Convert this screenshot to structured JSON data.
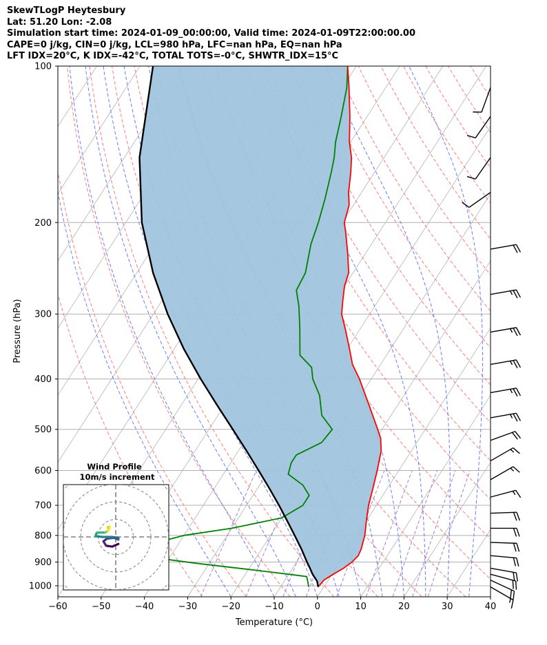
{
  "header": {
    "line1": "SkewTLogP Heytesbury",
    "line2": "Lat: 51.20   Lon: -2.08",
    "line3": "Simulation start time: 2024-01-09_00:00:00, Valid time: 2024-01-09T22:00:00.00",
    "line4": "CAPE=0 j/kg, CIN=0 j/kg, LCL=980 hPa, LFC=nan hPa, EQ=nan hPa",
    "line5": "LFT IDX=20°C, K IDX=-42°C, TOTAL TOTS=-0°C, SHWTR_IDX=15°C"
  },
  "chart_data": {
    "type": "line",
    "subtype": "skew-T log-P",
    "xlabel": "Temperature (°C)",
    "ylabel": "Pressure (hPa)",
    "xlim": [
      -60,
      40
    ],
    "ylim": [
      1050,
      100
    ],
    "yscale": "log",
    "xticks": [
      -60,
      -50,
      -40,
      -30,
      -20,
      -10,
      0,
      10,
      20,
      30,
      40
    ],
    "xtick_labels": [
      "−60",
      "−50",
      "−40",
      "−30",
      "−20",
      "−10",
      "0",
      "10",
      "20",
      "30",
      "40"
    ],
    "yticks": [
      1000,
      900,
      800,
      700,
      600,
      500,
      400,
      300,
      200,
      100
    ],
    "grid": true,
    "colors": {
      "temperature": "#ff0000",
      "dewpoint": "#008000",
      "parcel": "#000000",
      "shading": "#a0c4de",
      "dry_adiabat": "#ff6666",
      "moist_adiabat": "#4d66ff",
      "mixing_ratio": "#9966cc",
      "isotherm": "#b3b3b3"
    },
    "series": [
      {
        "role": "temperature",
        "points": [
          [
            1005,
            -1.3
          ],
          [
            975,
            -1.0
          ],
          [
            950,
            0.3
          ],
          [
            925,
            1.8
          ],
          [
            900,
            2.8
          ],
          [
            875,
            3.3
          ],
          [
            850,
            3.0
          ],
          [
            800,
            1.8
          ],
          [
            750,
            0.0
          ],
          [
            700,
            -1.8
          ],
          [
            650,
            -3.3
          ],
          [
            600,
            -5.0
          ],
          [
            550,
            -7.0
          ],
          [
            520,
            -9.0
          ],
          [
            500,
            -11.0
          ],
          [
            450,
            -16.5
          ],
          [
            400,
            -22.7
          ],
          [
            375,
            -26.5
          ],
          [
            350,
            -29.5
          ],
          [
            320,
            -33.5
          ],
          [
            300,
            -36.5
          ],
          [
            280,
            -38.5
          ],
          [
            265,
            -40.0
          ],
          [
            250,
            -41.0
          ],
          [
            230,
            -44.0
          ],
          [
            210,
            -47.5
          ],
          [
            200,
            -49.5
          ],
          [
            185,
            -51.0
          ],
          [
            175,
            -53.0
          ],
          [
            160,
            -55.5
          ],
          [
            150,
            -57.5
          ],
          [
            140,
            -60.3
          ],
          [
            125,
            -64.0
          ],
          [
            110,
            -68.5
          ],
          [
            100,
            -72.0
          ]
        ]
      },
      {
        "role": "dewpoint",
        "points": [
          [
            1005,
            -3.5
          ],
          [
            975,
            -4.8
          ],
          [
            960,
            -5.5
          ],
          [
            950,
            -10.0
          ],
          [
            930,
            -20.0
          ],
          [
            905,
            -33.0
          ],
          [
            880,
            -45.0
          ],
          [
            870,
            -47.0
          ],
          [
            850,
            -47.0
          ],
          [
            830,
            -46.0
          ],
          [
            800,
            -40.0
          ],
          [
            775,
            -30.0
          ],
          [
            740,
            -20.0
          ],
          [
            700,
            -17.0
          ],
          [
            670,
            -17.0
          ],
          [
            640,
            -20.0
          ],
          [
            610,
            -25.0
          ],
          [
            580,
            -26.0
          ],
          [
            560,
            -26.0
          ],
          [
            530,
            -22.0
          ],
          [
            500,
            -21.5
          ],
          [
            470,
            -26.0
          ],
          [
            430,
            -29.5
          ],
          [
            400,
            -33.5
          ],
          [
            380,
            -35.5
          ],
          [
            360,
            -40.0
          ],
          [
            320,
            -44.0
          ],
          [
            290,
            -47.5
          ],
          [
            270,
            -50.5
          ],
          [
            250,
            -51.0
          ],
          [
            220,
            -54.0
          ],
          [
            200,
            -55.5
          ],
          [
            180,
            -57.5
          ],
          [
            160,
            -60.0
          ],
          [
            150,
            -61.5
          ],
          [
            140,
            -63.5
          ],
          [
            125,
            -66.0
          ],
          [
            110,
            -69.0
          ],
          [
            100,
            -72.0
          ]
        ]
      },
      {
        "role": "parcel",
        "points": [
          [
            1005,
            -1.3
          ],
          [
            980,
            -2.4
          ],
          [
            950,
            -4.5
          ],
          [
            925,
            -6.0
          ],
          [
            900,
            -7.6
          ],
          [
            850,
            -10.8
          ],
          [
            800,
            -14.4
          ],
          [
            750,
            -18.3
          ],
          [
            700,
            -22.5
          ],
          [
            650,
            -27.2
          ],
          [
            600,
            -32.4
          ],
          [
            550,
            -38.1
          ],
          [
            500,
            -44.5
          ],
          [
            450,
            -51.6
          ],
          [
            400,
            -59.4
          ],
          [
            350,
            -67.8
          ],
          [
            300,
            -76.7
          ],
          [
            250,
            -86.2
          ],
          [
            200,
            -96.3
          ],
          [
            150,
            -106.5
          ],
          [
            100,
            -117.0
          ]
        ]
      }
    ],
    "wind_barbs": {
      "units": "knots",
      "levels": [
        {
          "pressure": 1005,
          "speed": 17,
          "direction": 120
        },
        {
          "pressure": 975,
          "speed": 20,
          "direction": 115
        },
        {
          "pressure": 950,
          "speed": 20,
          "direction": 105
        },
        {
          "pressure": 925,
          "speed": 20,
          "direction": 100
        },
        {
          "pressure": 875,
          "speed": 20,
          "direction": 95
        },
        {
          "pressure": 825,
          "speed": 20,
          "direction": 92
        },
        {
          "pressure": 775,
          "speed": 20,
          "direction": 90
        },
        {
          "pressure": 725,
          "speed": 20,
          "direction": 88
        },
        {
          "pressure": 675,
          "speed": 15,
          "direction": 75
        },
        {
          "pressure": 625,
          "speed": 15,
          "direction": 60
        },
        {
          "pressure": 575,
          "speed": 15,
          "direction": 60
        },
        {
          "pressure": 525,
          "speed": 20,
          "direction": 70
        },
        {
          "pressure": 475,
          "speed": 25,
          "direction": 80
        },
        {
          "pressure": 425,
          "speed": 25,
          "direction": 80
        },
        {
          "pressure": 375,
          "speed": 25,
          "direction": 80
        },
        {
          "pressure": 325,
          "speed": 25,
          "direction": 80
        },
        {
          "pressure": 275,
          "speed": 25,
          "direction": 80
        },
        {
          "pressure": 225,
          "speed": 20,
          "direction": 80
        },
        {
          "pressure": 175,
          "speed": 10,
          "direction": 235
        },
        {
          "pressure": 150,
          "speed": 10,
          "direction": 215
        },
        {
          "pressure": 125,
          "speed": 10,
          "direction": 215
        },
        {
          "pressure": 110,
          "speed": 10,
          "direction": 200
        }
      ]
    },
    "hodograph": {
      "title": "Wind Profile",
      "subtitle": "10m/s increment",
      "ring_increment_ms": 10,
      "rings": 4,
      "colormap": "viridis",
      "points": [
        [
          1.5,
          -4.0
        ],
        [
          -2.0,
          -5.5
        ],
        [
          -5.5,
          -5.0
        ],
        [
          -7.0,
          -2.5
        ],
        [
          -5.0,
          -1.0
        ],
        [
          -1.0,
          -0.5
        ],
        [
          1.5,
          -1.5
        ],
        [
          1.5,
          -0.5
        ],
        [
          -2.5,
          0
        ],
        [
          -7.5,
          0
        ],
        [
          -11.5,
          0.5
        ],
        [
          -11.0,
          2.0
        ],
        [
          -10.5,
          2.5
        ],
        [
          -8.0,
          2.5
        ],
        [
          -6.0,
          2.5
        ],
        [
          -4.5,
          3.5
        ],
        [
          -4.0,
          4.0
        ],
        [
          -4.5,
          5.5
        ],
        [
          -3.5,
          6.0
        ],
        [
          -3.5,
          5.0
        ],
        [
          -4.5,
          3.5
        ]
      ]
    }
  }
}
